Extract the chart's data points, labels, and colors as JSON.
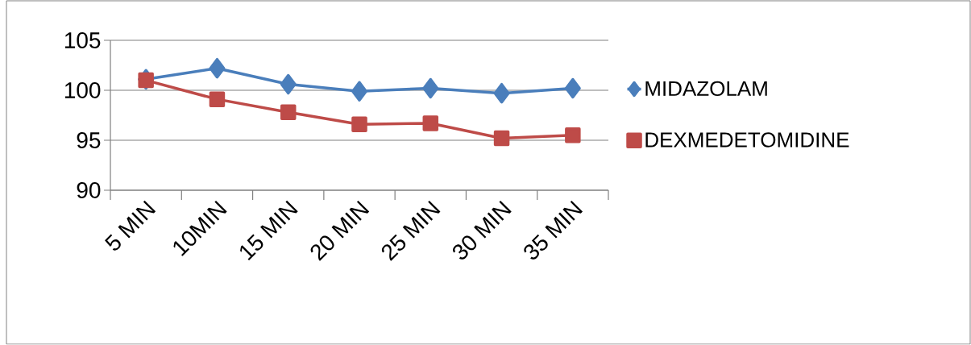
{
  "chart_data": {
    "type": "line",
    "categories": [
      "5 MIN",
      "10MIN",
      "15 MIN",
      "20 MIN",
      "25 MIN",
      "30 MIN",
      "35 MIN"
    ],
    "series": [
      {
        "name": "MIDAZOLAM",
        "color": "#4a7ebb",
        "marker": "diamond",
        "values": [
          101.1,
          102.2,
          100.6,
          99.9,
          100.2,
          99.7,
          100.2
        ]
      },
      {
        "name": "DEXMEDETOMIDINE",
        "color": "#be4b48",
        "marker": "square",
        "values": [
          101.0,
          99.1,
          97.8,
          96.6,
          96.7,
          95.2,
          95.5
        ]
      }
    ],
    "ylim": [
      90,
      105
    ],
    "yticks": [
      90,
      95,
      100,
      105
    ],
    "grid": "y",
    "legend": "right"
  }
}
